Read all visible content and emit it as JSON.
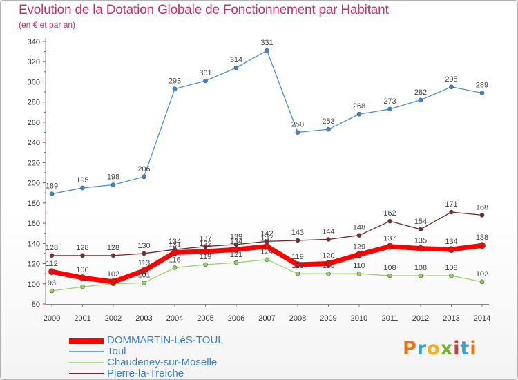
{
  "header": {
    "title": "Evolution de la Dotation Globale de Fonctionnement par Habitant",
    "subtitle": "(en € et par an)"
  },
  "brand": {
    "letters": [
      "P",
      "r",
      "o",
      "x",
      "i",
      "t",
      "i"
    ],
    "colors": [
      "#e8731f",
      "#3aa0d8",
      "#f0b21d",
      "#6fb62a",
      "#d83b3b",
      "#3aa0d8",
      "#e8731f"
    ]
  },
  "legend": {
    "items": [
      {
        "label": "DOMMARTIN-LèS-TOUL",
        "color": "#ff0000",
        "width": 9
      },
      {
        "label": "Toul",
        "color": "#6ea6d8",
        "width": 2
      },
      {
        "label": "Chaudeney-sur-Moselle",
        "color": "#a8dd84",
        "width": 2
      },
      {
        "label": "Pierre-la-Treiche",
        "color": "#6e2b2b",
        "width": 2
      }
    ]
  },
  "chart_data": {
    "type": "line",
    "title": "Evolution de la Dotation Globale de Fonctionnement par Habitant",
    "subtitle": "(en € et par an)",
    "xlabel": "",
    "ylabel": "",
    "x": [
      "2000",
      "2001",
      "2002",
      "2003",
      "2004",
      "2005",
      "2006",
      "2007",
      "2008",
      "2009",
      "2010",
      "2011",
      "2012",
      "2013",
      "2014"
    ],
    "ylim": [
      80,
      340
    ],
    "yticks": [
      80,
      100,
      120,
      140,
      160,
      180,
      200,
      220,
      240,
      260,
      280,
      300,
      320,
      340
    ],
    "grid": false,
    "legend_position": "bottom-left",
    "series": [
      {
        "name": "Toul",
        "color": "#4f8fcf",
        "marker": "#3f86c8",
        "width": 1.3,
        "values": [
          189,
          195,
          198,
          206,
          293,
          301,
          314,
          331,
          250,
          253,
          268,
          273,
          282,
          295,
          289
        ]
      },
      {
        "name": "Pierre-la-Treiche",
        "color": "#6e2b2b",
        "marker": "#7a2a2a",
        "width": 1.3,
        "values": [
          128,
          128,
          128,
          130,
          134,
          137,
          139,
          142,
          143,
          144,
          148,
          162,
          154,
          171,
          168
        ]
      },
      {
        "name": "Chaudeney-sur-Moselle",
        "color": "#98d36e",
        "marker": "#8fd060",
        "width": 1.3,
        "values": [
          93,
          97,
          100,
          101,
          116,
          119,
          121,
          124,
          110,
          110,
          110,
          108,
          108,
          108,
          102
        ]
      },
      {
        "name": "DOMMARTIN-LèS-TOUL",
        "color": "#ff0000",
        "marker": "#e01010",
        "width": 7,
        "values": [
          112,
          106,
          102,
          113,
          131,
          132,
          134,
          137,
          119,
          120,
          129,
          137,
          135,
          134,
          138
        ]
      }
    ],
    "data_labels": [
      {
        "series": "Toul",
        "labels": [
          "189",
          "195",
          "198",
          "206",
          "293",
          "301",
          "314",
          "331",
          "250",
          "253",
          "268",
          "273",
          "282",
          "295",
          "289"
        ]
      },
      {
        "series": "Pierre-la-Treiche",
        "labels": [
          "128",
          "128",
          "128",
          "130",
          "134",
          "137",
          "139",
          "142",
          "143",
          "144",
          "148",
          "162",
          "154",
          "171",
          "168"
        ]
      },
      {
        "series": "Chaudeney-sur-Moselle",
        "labels": [
          "93",
          "",
          "",
          "101",
          "116",
          "119",
          "121",
          "124",
          "110",
          "110",
          "110",
          "108",
          "108",
          "108",
          "102"
        ]
      },
      {
        "series": "DOMMARTIN-LèS-TOUL",
        "labels": [
          "112",
          "106",
          "102",
          "113",
          "131",
          "132",
          "134",
          "137",
          "119",
          "120",
          "129",
          "137",
          "135",
          "134",
          "138"
        ]
      }
    ]
  }
}
